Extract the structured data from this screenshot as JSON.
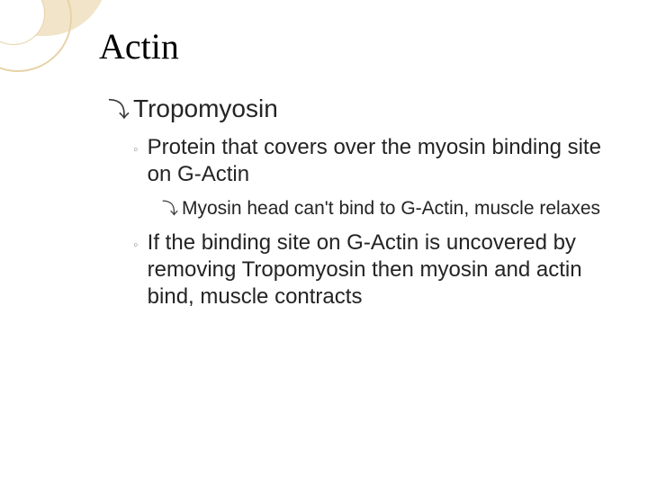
{
  "slide": {
    "title": "Actin",
    "bullets": {
      "level1": {
        "text": "Tropomyosin"
      },
      "level2_a": {
        "text": "Protein that covers over the myosin binding site on G-Actin"
      },
      "level3_a": {
        "text": "Myosin head can't bind to G-Actin, muscle relaxes"
      },
      "level2_b": {
        "text": "If the binding site on G-Actin is uncovered by removing Tropomyosin then myosin and actin bind, muscle contracts"
      }
    }
  },
  "colors": {
    "background": "#ffffff",
    "title_text": "#000000",
    "body_text": "#242424",
    "deco_band": "#f1e4c9",
    "deco_border": "#e7d3a8",
    "bullet_dark": "#3a3a3a",
    "bullet_light": "#9a9a9a"
  },
  "fonts": {
    "title_family": "Times New Roman",
    "body_family": "Arial",
    "title_size_pt": 30,
    "level1_size_pt": 21,
    "level2_size_pt": 18,
    "level3_size_pt": 16
  }
}
